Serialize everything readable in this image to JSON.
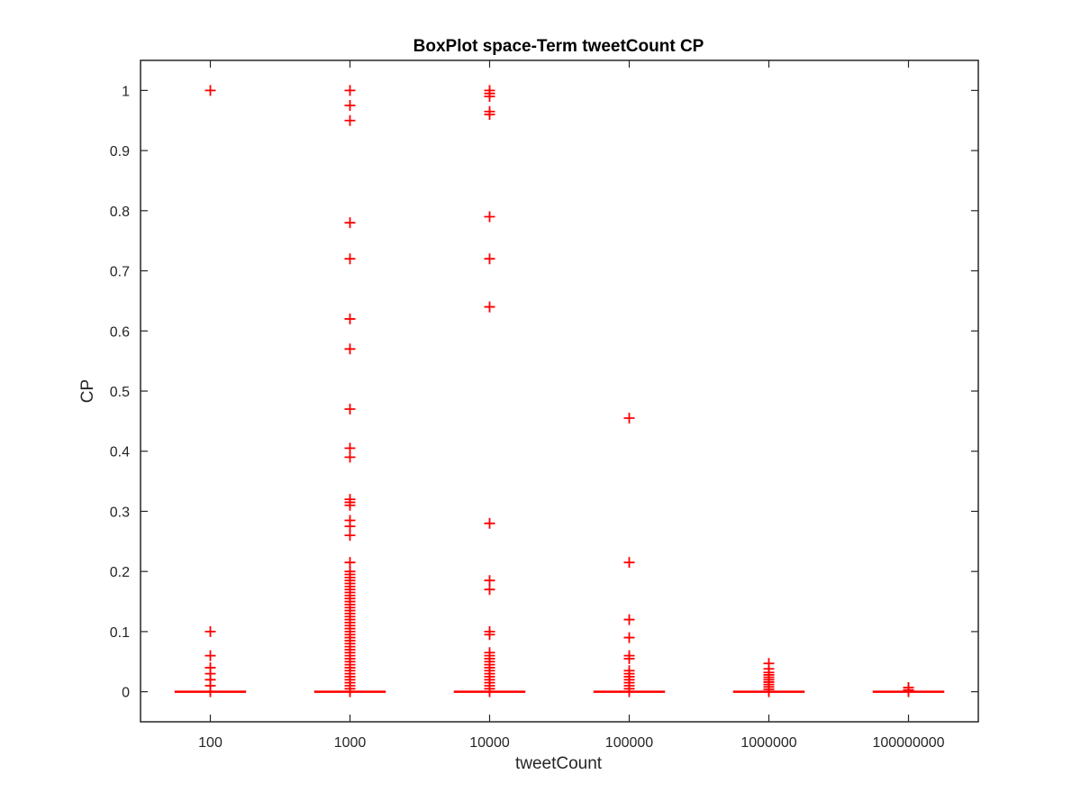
{
  "chart_data": {
    "type": "boxplot",
    "title": "BoxPlot space-Term tweetCount CP",
    "xlabel": "tweetCount",
    "ylabel": "CP",
    "categories": [
      "100",
      "1000",
      "10000",
      "100000",
      "1000000",
      "100000000"
    ],
    "ylim": [
      -0.05,
      1.05
    ],
    "yticks": [
      0,
      0.1,
      0.2,
      0.3,
      0.4,
      0.5,
      0.6,
      0.7,
      0.8,
      0.9,
      1
    ],
    "ytick_labels": [
      "0",
      "0.1",
      "0.2",
      "0.3",
      "0.4",
      "0.5",
      "0.6",
      "0.7",
      "0.8",
      "0.9",
      "1"
    ],
    "grid": false,
    "colors": {
      "box": "#ff0000",
      "outlier": "#ff0000",
      "axis": "#262626"
    },
    "boxes": [
      {
        "category": "100",
        "median": 0,
        "q1": 0,
        "q3": 0,
        "whisker_low": 0,
        "whisker_high": 0,
        "outliers": [
          1.0,
          0.1,
          0.06,
          0.04,
          0.03,
          0.02,
          0.01,
          0.0
        ]
      },
      {
        "category": "1000",
        "median": 0,
        "q1": 0,
        "q3": 0,
        "whisker_low": 0,
        "whisker_high": 0,
        "outliers": [
          1.0,
          0.975,
          0.95,
          0.78,
          0.72,
          0.62,
          0.57,
          0.47,
          0.405,
          0.39,
          0.32,
          0.315,
          0.31,
          0.285,
          0.275,
          0.26,
          0.215,
          0.2,
          0.195,
          0.19,
          0.185,
          0.18,
          0.175,
          0.17,
          0.165,
          0.16,
          0.155,
          0.15,
          0.145,
          0.14,
          0.135,
          0.13,
          0.125,
          0.12,
          0.115,
          0.11,
          0.105,
          0.1,
          0.095,
          0.09,
          0.085,
          0.08,
          0.075,
          0.07,
          0.065,
          0.06,
          0.055,
          0.05,
          0.045,
          0.04,
          0.035,
          0.03,
          0.025,
          0.02,
          0.015,
          0.01,
          0.005,
          0.0
        ]
      },
      {
        "category": "10000",
        "median": 0,
        "q1": 0,
        "q3": 0,
        "whisker_low": 0,
        "whisker_high": 0,
        "outliers": [
          1.0,
          0.995,
          0.99,
          0.965,
          0.96,
          0.79,
          0.72,
          0.64,
          0.28,
          0.185,
          0.17,
          0.1,
          0.095,
          0.065,
          0.06,
          0.055,
          0.05,
          0.045,
          0.04,
          0.035,
          0.03,
          0.025,
          0.02,
          0.015,
          0.01,
          0.005,
          0.0
        ]
      },
      {
        "category": "100000",
        "median": 0,
        "q1": 0,
        "q3": 0,
        "whisker_low": 0,
        "whisker_high": 0,
        "outliers": [
          0.455,
          0.215,
          0.12,
          0.09,
          0.06,
          0.055,
          0.035,
          0.03,
          0.025,
          0.02,
          0.015,
          0.01,
          0.005,
          0.0
        ]
      },
      {
        "category": "1000000",
        "median": 0,
        "q1": 0,
        "q3": 0,
        "whisker_low": 0,
        "whisker_high": 0,
        "outliers": [
          0.047,
          0.038,
          0.032,
          0.028,
          0.024,
          0.02,
          0.016,
          0.012,
          0.008,
          0.004,
          0.0
        ]
      },
      {
        "category": "100000000",
        "median": 0,
        "q1": 0,
        "q3": 0,
        "whisker_low": 0,
        "whisker_high": 0,
        "outliers": [
          0.007,
          0.003,
          0.0
        ]
      }
    ]
  }
}
